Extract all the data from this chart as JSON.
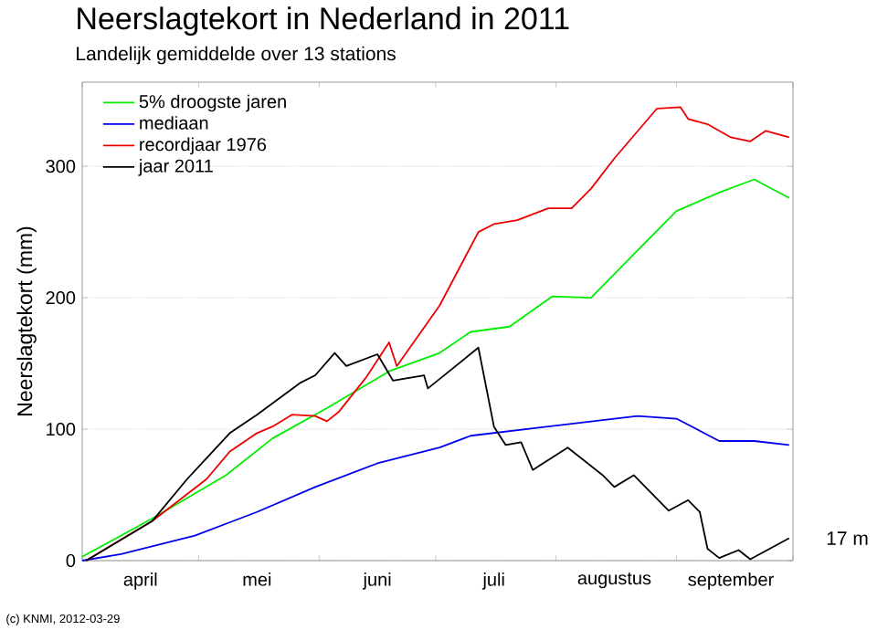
{
  "chart_data": {
    "type": "line",
    "title": "Neerslagtekort in Nederland in 2011",
    "subtitle": "Landelijk gemiddelde over 13 stations",
    "ylabel": "Neerslagtekort (mm)",
    "series": [
      {
        "name": "5% droogste jaren",
        "color": "#00ee00",
        "x": [
          "2011-04-01",
          "2011-04-19",
          "2011-05-08",
          "2011-05-20",
          "2011-06-03",
          "2011-06-19",
          "2011-07-02",
          "2011-07-10",
          "2011-07-20",
          "2011-07-31",
          "2011-08-10",
          "2011-08-19",
          "2011-09-01",
          "2011-09-12",
          "2011-09-21",
          "2011-09-30"
        ],
        "values": [
          3,
          32,
          65,
          93,
          116,
          144,
          158,
          174,
          178,
          201,
          200,
          227,
          266,
          280,
          290,
          276
        ]
      },
      {
        "name": "mediaan",
        "color": "#0000ee",
        "x": [
          "2011-04-01",
          "2011-04-11",
          "2011-04-30",
          "2011-05-16",
          "2011-05-31",
          "2011-06-16",
          "2011-07-02",
          "2011-07-10",
          "2011-07-30",
          "2011-08-22",
          "2011-09-01",
          "2011-09-12",
          "2011-09-21",
          "2011-09-30"
        ],
        "values": [
          0,
          5,
          19,
          37,
          56,
          74,
          86,
          95,
          102,
          110,
          108,
          91,
          91,
          88
        ]
      },
      {
        "name": "recordjaar 1976",
        "color": "#ee0000",
        "x": [
          "2011-04-02",
          "2011-04-19",
          "2011-05-03",
          "2011-05-09",
          "2011-05-16",
          "2011-05-20",
          "2011-05-25",
          "2011-05-31",
          "2011-06-03",
          "2011-06-06",
          "2011-06-13",
          "2011-06-19",
          "2011-06-21",
          "2011-07-02",
          "2011-07-12",
          "2011-07-16",
          "2011-07-22",
          "2011-07-30",
          "2011-08-05",
          "2011-08-10",
          "2011-08-16",
          "2011-08-27",
          "2011-09-02",
          "2011-09-04",
          "2011-09-09",
          "2011-09-15",
          "2011-09-20",
          "2011-09-24",
          "2011-09-30"
        ],
        "values": [
          0,
          30,
          62,
          83,
          97,
          102,
          111,
          110,
          106,
          113,
          139,
          166,
          148,
          194,
          250,
          256,
          259,
          268,
          268,
          283,
          306,
          344,
          345,
          336,
          332,
          322,
          319,
          327,
          322
        ]
      },
      {
        "name": "jaar 2011",
        "color": "#000000",
        "x": [
          "2011-04-02",
          "2011-04-19",
          "2011-04-28",
          "2011-05-09",
          "2011-05-16",
          "2011-05-27",
          "2011-05-31",
          "2011-06-05",
          "2011-06-08",
          "2011-06-16",
          "2011-06-20",
          "2011-06-28",
          "2011-06-29",
          "2011-07-12",
          "2011-07-16",
          "2011-07-19",
          "2011-07-23",
          "2011-07-26",
          "2011-08-04",
          "2011-08-13",
          "2011-08-16",
          "2011-08-21",
          "2011-08-30",
          "2011-09-04",
          "2011-09-07",
          "2011-09-09",
          "2011-09-12",
          "2011-09-17",
          "2011-09-20",
          "2011-09-30"
        ],
        "values": [
          0,
          30,
          62,
          97,
          111,
          135,
          141,
          158,
          148,
          157,
          137,
          141,
          131,
          162,
          102,
          88,
          90,
          69,
          86,
          65,
          56,
          65,
          38,
          46,
          37,
          9,
          2,
          8,
          1,
          17
        ]
      }
    ],
    "xlim": [
      "2011-04-01",
      "2011-10-01"
    ],
    "xticks": [
      {
        "value": "2011-04-01",
        "label": null
      },
      {
        "value": "2011-05-01",
        "label": null
      },
      {
        "value": "2011-06-01",
        "label": null
      },
      {
        "value": "2011-07-01",
        "label": null
      },
      {
        "value": "2011-08-01",
        "label": null
      },
      {
        "value": "2011-09-01",
        "label": null
      },
      {
        "value": "2011-10-01",
        "label": null
      },
      {
        "value": "2011-04-16",
        "label": "april"
      },
      {
        "value": "2011-05-16",
        "label": "mei"
      },
      {
        "value": "2011-06-16",
        "label": "juni"
      },
      {
        "value": "2011-07-16",
        "label": "juli"
      },
      {
        "value": "2011-08-16",
        "label": "augustus"
      },
      {
        "value": "2011-09-15",
        "label": "september"
      }
    ],
    "ylim": [
      0,
      364
    ],
    "yticks": [
      0,
      100,
      200,
      300
    ],
    "grid": "y",
    "legend": "top left",
    "marker": "none",
    "line_style": "solid",
    "annotations": [
      {
        "text": "17 m",
        "x": "2011-09-30",
        "y": 17
      },
      "(c) KNMI, 2012-03-29"
    ]
  }
}
